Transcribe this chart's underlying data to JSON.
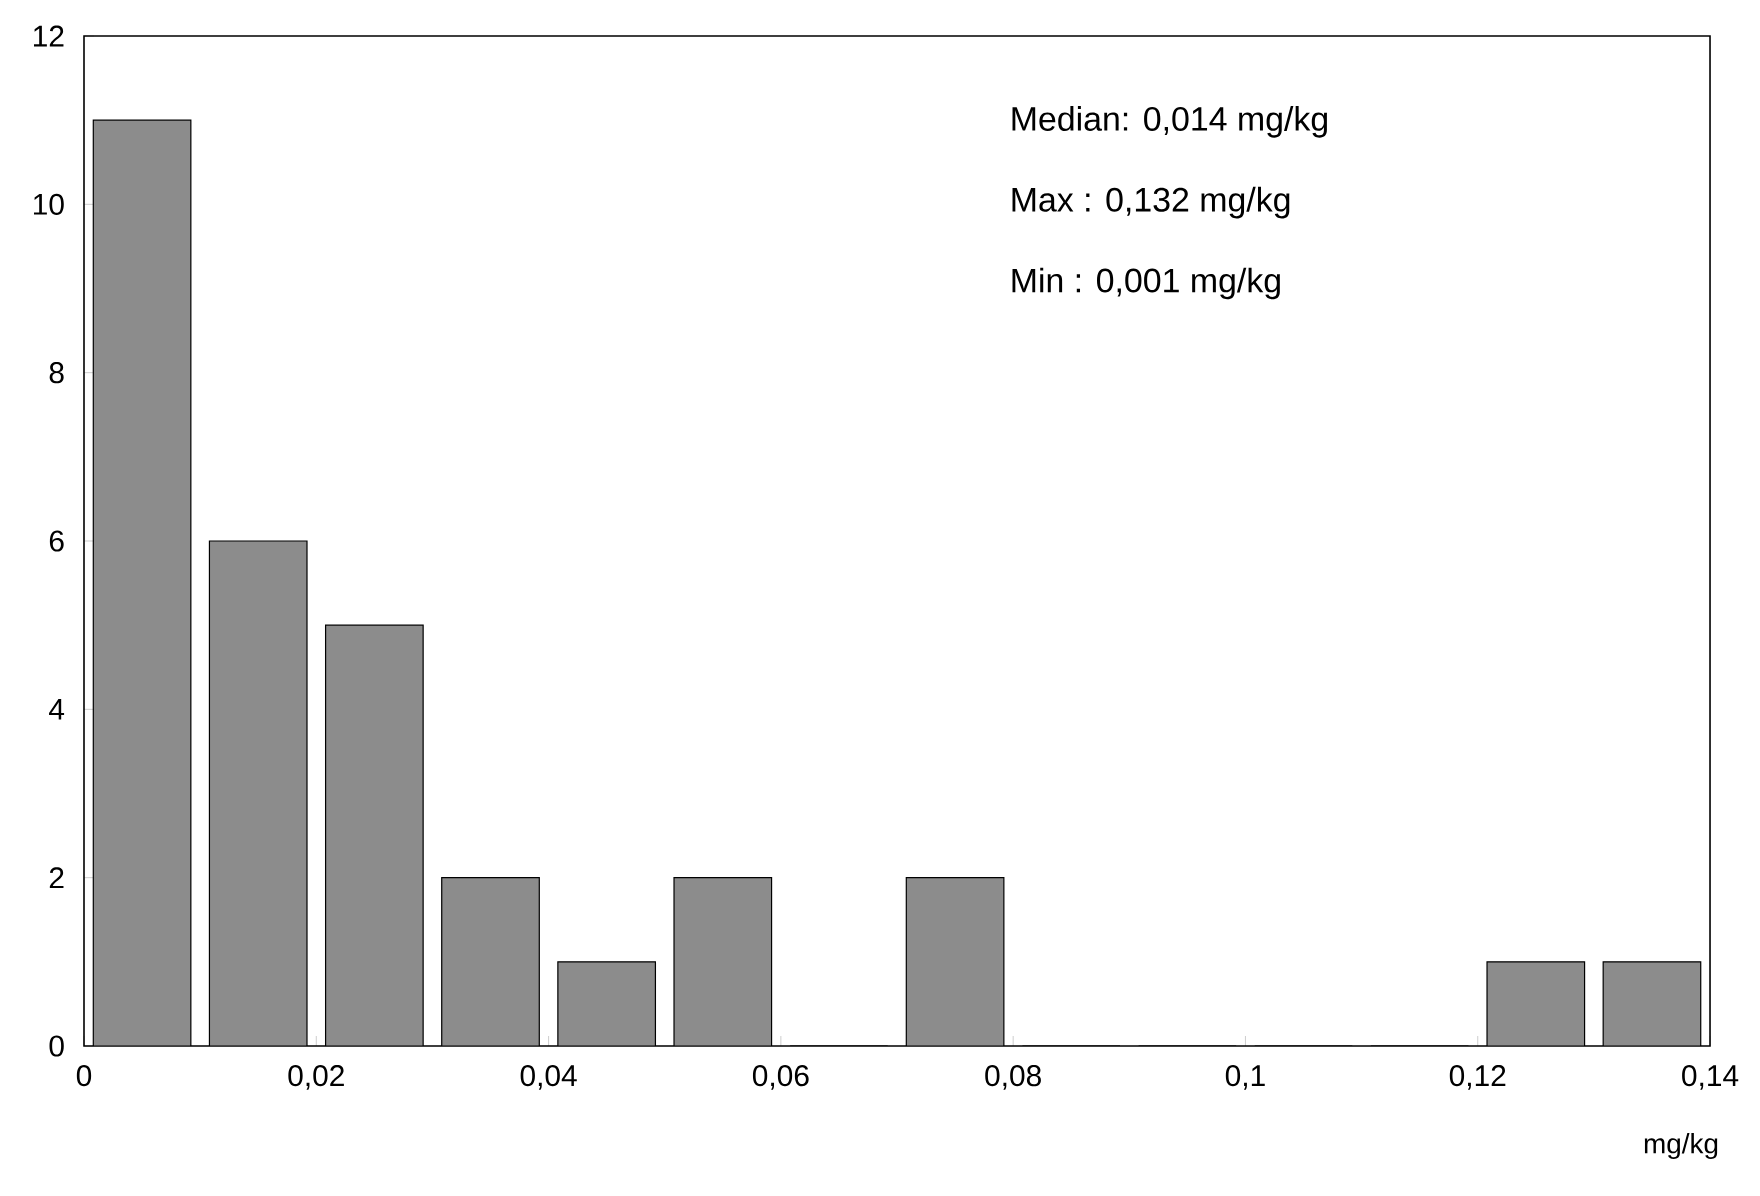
{
  "chart_data": {
    "type": "histogram",
    "bins": [
      0,
      0.01,
      0.02,
      0.03,
      0.04,
      0.05,
      0.06,
      0.07,
      0.08,
      0.09,
      0.1,
      0.11,
      0.12,
      0.13,
      0.14
    ],
    "values": [
      11,
      6,
      5,
      2,
      1,
      2,
      0,
      2,
      0,
      0,
      0,
      0,
      1,
      1
    ],
    "color": "#8c8c8c",
    "xlabel": "mg/kg",
    "xlim": [
      0,
      0.14
    ],
    "xticks": [
      0,
      {
        "value": 0.02,
        "label": "0,02"
      },
      {
        "value": 0.04,
        "label": "0,04"
      },
      {
        "value": 0.06,
        "label": "0,06"
      },
      {
        "value": 0.08,
        "label": "0,08"
      },
      {
        "value": 0.1,
        "label": "0,1"
      },
      {
        "value": 0.12,
        "label": "0,12"
      },
      {
        "value": 0.14,
        "label": "0,14"
      }
    ],
    "ylim": [
      0,
      12
    ],
    "yticks": [
      0,
      2,
      4,
      6,
      8,
      10,
      12
    ],
    "grid": false,
    "annotations": [
      "Median: 0,014 mg/kg",
      "Max    : 0,132 mg/kg",
      "Min    : 0,001 mg/kg"
    ]
  }
}
